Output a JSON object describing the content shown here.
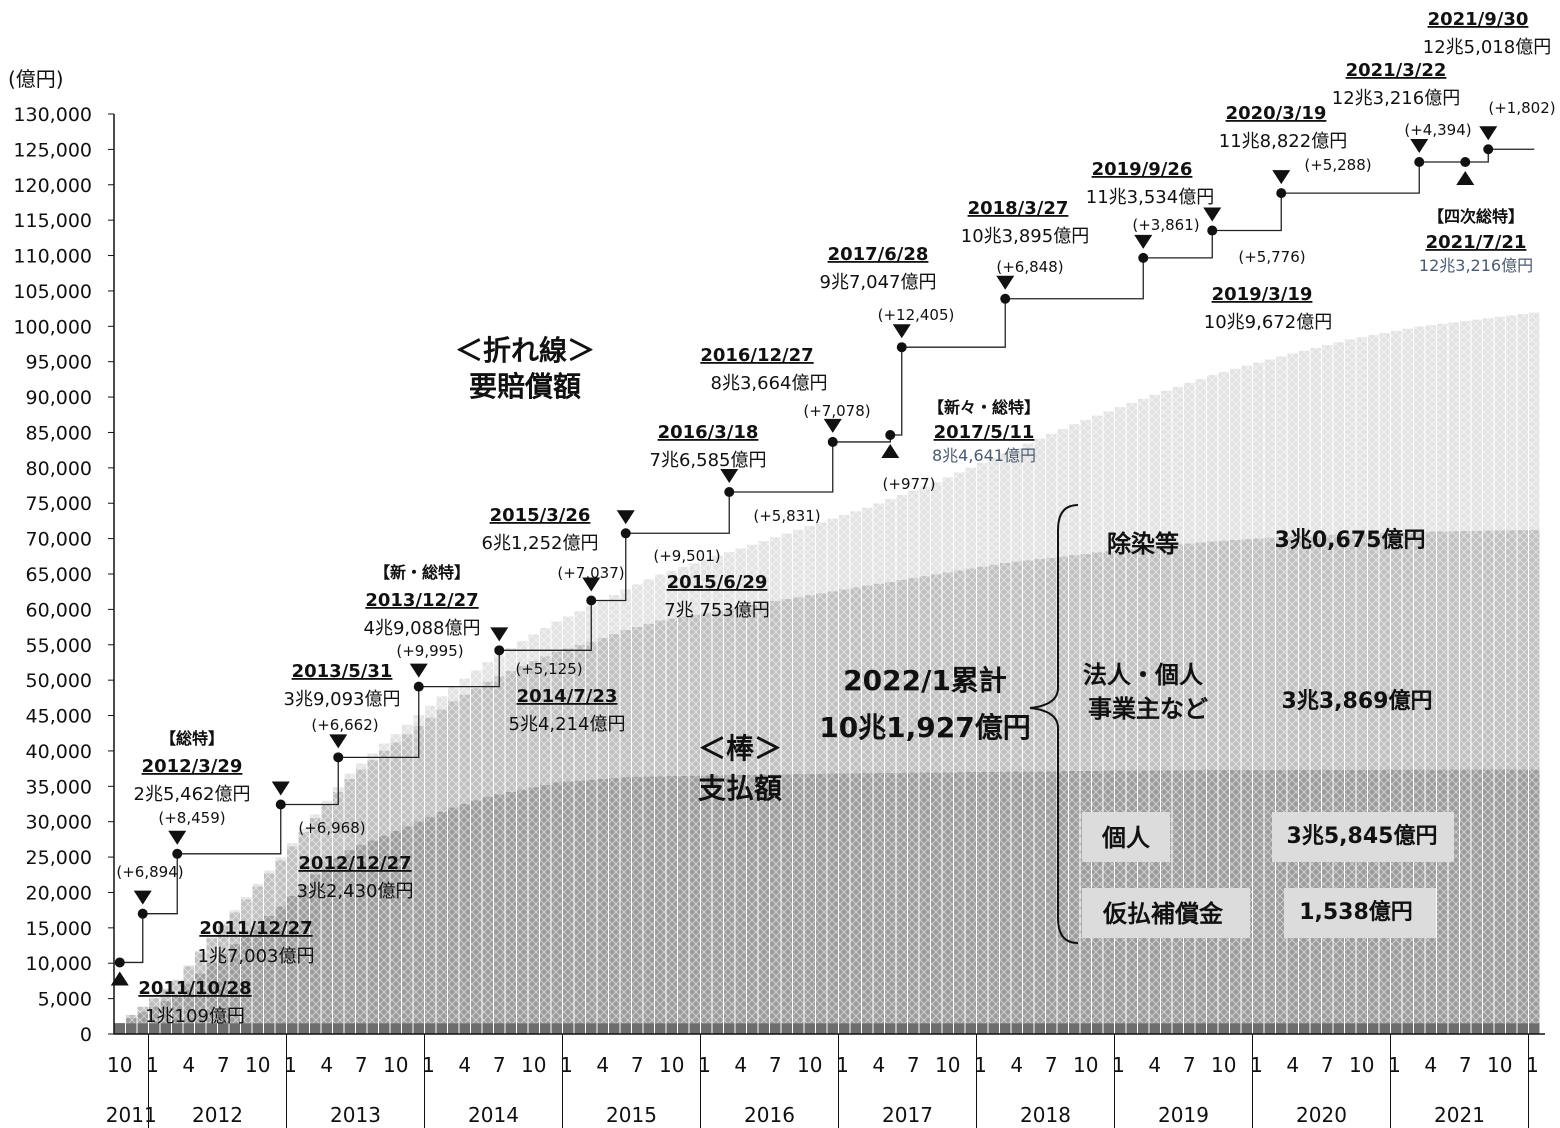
{
  "chart_data": {
    "type": "bar",
    "unit_label": "(億円)",
    "y_axis": {
      "ylim": [
        0,
        130000
      ],
      "ticks": [
        "0",
        "5,000",
        "10,000",
        "15,000",
        "20,000",
        "25,000",
        "30,000",
        "35,000",
        "40,000",
        "45,000",
        "50,000",
        "55,000",
        "60,000",
        "65,000",
        "70,000",
        "75,000",
        "80,000",
        "85,000",
        "90,000",
        "95,000",
        "100,000",
        "105,000",
        "110,000",
        "115,000",
        "120,000",
        "125,000",
        "130,000"
      ]
    },
    "x_axis": {
      "start": "2011-10",
      "end": "2022-01",
      "month_tick_labels": [
        "1",
        "4",
        "7",
        "10"
      ],
      "years": [
        "2011",
        "2012",
        "2013",
        "2014",
        "2015",
        "2016",
        "2017",
        "2018",
        "2019",
        "2020",
        "2021"
      ]
    },
    "bar_series": [
      {
        "name": "仮払補償金",
        "total_label": "1,538億円",
        "color": "#6d6d6d",
        "points": [
          [
            "2011-10",
            1538
          ],
          [
            "2022-01",
            1538
          ]
        ]
      },
      {
        "name": "個人",
        "total_label": "3兆5,845億円",
        "color": "#9c9c9c",
        "points": [
          [
            "2011-10",
            0
          ],
          [
            "2011-12",
            1500
          ],
          [
            "2012-03",
            4000
          ],
          [
            "2012-06",
            8500
          ],
          [
            "2012-09",
            12500
          ],
          [
            "2012-12",
            16500
          ],
          [
            "2013-03",
            21000
          ],
          [
            "2013-06",
            24500
          ],
          [
            "2013-09",
            26500
          ],
          [
            "2013-12",
            28500
          ],
          [
            "2014-03",
            30500
          ],
          [
            "2014-06",
            32000
          ],
          [
            "2014-09",
            33000
          ],
          [
            "2014-12",
            34000
          ],
          [
            "2015-06",
            34800
          ],
          [
            "2016-01",
            35000
          ],
          [
            "2017-01",
            35300
          ],
          [
            "2018-01",
            35500
          ],
          [
            "2019-01",
            35700
          ],
          [
            "2020-01",
            35800
          ],
          [
            "2022-01",
            35845
          ]
        ]
      },
      {
        "name": "法人・個人事業主など",
        "total_label": "3兆3,869億円",
        "color": "#c0c0c0",
        "points": [
          [
            "2011-10",
            0
          ],
          [
            "2012-03",
            2000
          ],
          [
            "2012-09",
            5000
          ],
          [
            "2013-03",
            8000
          ],
          [
            "2013-09",
            12000
          ],
          [
            "2014-03",
            15000
          ],
          [
            "2014-09",
            17500
          ],
          [
            "2015-03",
            19500
          ],
          [
            "2015-09",
            22000
          ],
          [
            "2016-03",
            23500
          ],
          [
            "2016-09",
            25000
          ],
          [
            "2017-03",
            26500
          ],
          [
            "2017-09",
            28000
          ],
          [
            "2018-03",
            29500
          ],
          [
            "2018-09",
            30500
          ],
          [
            "2019-03",
            31500
          ],
          [
            "2019-09",
            32300
          ],
          [
            "2020-03",
            32900
          ],
          [
            "2020-09",
            33300
          ],
          [
            "2021-03",
            33600
          ],
          [
            "2022-01",
            33869
          ]
        ]
      },
      {
        "name": "除染等",
        "total_label": "3兆0,675億円",
        "color": "#e3e3e3",
        "points": [
          [
            "2011-10",
            0
          ],
          [
            "2013-03",
            500
          ],
          [
            "2013-09",
            1000
          ],
          [
            "2014-03",
            2000
          ],
          [
            "2014-09",
            3500
          ],
          [
            "2015-03",
            5000
          ],
          [
            "2015-09",
            6500
          ],
          [
            "2016-03",
            8000
          ],
          [
            "2016-09",
            9500
          ],
          [
            "2017-03",
            11000
          ],
          [
            "2017-09",
            13000
          ],
          [
            "2018-03",
            15500
          ],
          [
            "2018-09",
            18500
          ],
          [
            "2019-03",
            21000
          ],
          [
            "2019-09",
            23500
          ],
          [
            "2020-03",
            25500
          ],
          [
            "2020-09",
            27500
          ],
          [
            "2021-03",
            29000
          ],
          [
            "2021-09",
            30000
          ],
          [
            "2022-01",
            30675
          ]
        ]
      }
    ],
    "bar_labels": {
      "stick_title": "＜棒＞",
      "stick_sub": "支払額",
      "cumulative_title": "2022/1累計",
      "cumulative_value": "10兆1,927億円",
      "categories": [
        {
          "label": "除染等",
          "value": "3兆0,675億円",
          "boxed": false
        },
        {
          "label": "法人・個人",
          "label2": "事業主など",
          "value": "3兆3,869億円",
          "boxed": false
        },
        {
          "label": "個人",
          "value": "3兆5,845億円",
          "boxed": true
        },
        {
          "label": "仮払補償金",
          "value": "1,538億円",
          "boxed": true
        }
      ]
    },
    "line_title": "＜折れ線＞",
    "line_sub": "要賠償額",
    "line_steps": [
      {
        "date": "2011-10",
        "value": 10109
      },
      {
        "date": "2011-12",
        "value": 17003
      },
      {
        "date": "2012-03",
        "value": 25462
      },
      {
        "date": "2012-12",
        "value": 32430
      },
      {
        "date": "2013-05",
        "value": 39093
      },
      {
        "date": "2013-12",
        "value": 49088
      },
      {
        "date": "2014-07",
        "value": 54214
      },
      {
        "date": "2015-03",
        "value": 61252
      },
      {
        "date": "2015-06",
        "value": 70753
      },
      {
        "date": "2016-03",
        "value": 76585
      },
      {
        "date": "2016-12",
        "value": 83664
      },
      {
        "date": "2017-05",
        "value": 84641
      },
      {
        "date": "2017-06",
        "value": 97047
      },
      {
        "date": "2018-03",
        "value": 103895
      },
      {
        "date": "2019-03",
        "value": 109672
      },
      {
        "date": "2019-09",
        "value": 113534
      },
      {
        "date": "2020-03",
        "value": 118822
      },
      {
        "date": "2021-03",
        "value": 123216
      },
      {
        "date": "2021-07",
        "value": 123216
      },
      {
        "date": "2021-09",
        "value": 125018
      },
      {
        "date": "2022-01",
        "value": 125018
      }
    ],
    "annotations": [
      {
        "date_label": "2011/10/28",
        "amount": "1兆109億円"
      },
      {
        "date_label": "2011/12/27",
        "amount": "1兆7,003億円",
        "increase": "(+6,894)"
      },
      {
        "badge": "【総特】",
        "date_label": "2012/3/29",
        "amount": "2兆5,462億円",
        "increase": "(+8,459)"
      },
      {
        "date_label": "2012/12/27",
        "amount": "3兆2,430億円",
        "increase": "(+6,968)"
      },
      {
        "date_label": "2013/5/31",
        "amount": "3兆9,093億円",
        "increase": "(+6,662)"
      },
      {
        "badge": "【新・総特】",
        "date_label": "2013/12/27",
        "amount": "4兆9,088億円",
        "increase": "(+9,995)"
      },
      {
        "date_label": "2014/7/23",
        "amount": "5兆4,214億円",
        "increase": "(+5,125)"
      },
      {
        "date_label": "2015/3/26",
        "amount": "6兆1,252億円",
        "increase": "(+7,037)"
      },
      {
        "date_label": "2015/6/29",
        "amount": "7兆 753億円",
        "increase": "(+9,501)"
      },
      {
        "date_label": "2016/3/18",
        "amount": "7兆6,585億円",
        "increase": "(+5,831)"
      },
      {
        "date_label": "2016/12/27",
        "amount": "8兆3,664億円",
        "increase": "(+7,078)"
      },
      {
        "badge": "【新々・総特】",
        "date_label": "2017/5/11",
        "amount": "8兆4,641億円",
        "increase": "(+977)"
      },
      {
        "date_label": "2017/6/28",
        "amount": "9兆7,047億円",
        "increase": "(+12,405)"
      },
      {
        "date_label": "2018/3/27",
        "amount": "10兆3,895億円",
        "increase": "(+6,848)"
      },
      {
        "date_label": "2019/3/19",
        "amount": "10兆9,672億円",
        "increase": "(+5,776)"
      },
      {
        "date_label": "2019/9/26",
        "amount": "11兆3,534億円",
        "increase": "(+3,861)"
      },
      {
        "date_label": "2020/3/19",
        "amount": "11兆8,822億円",
        "increase": "(+5,288)"
      },
      {
        "date_label": "2021/3/22",
        "amount": "12兆3,216億円",
        "increase": "(+4,394)"
      },
      {
        "badge": "【四次総特】",
        "date_label": "2021/7/21",
        "amount": "12兆3,216億円"
      },
      {
        "date_label": "2021/9/30",
        "amount": "12兆5,018億円",
        "increase": "(+1,802)"
      }
    ]
  }
}
